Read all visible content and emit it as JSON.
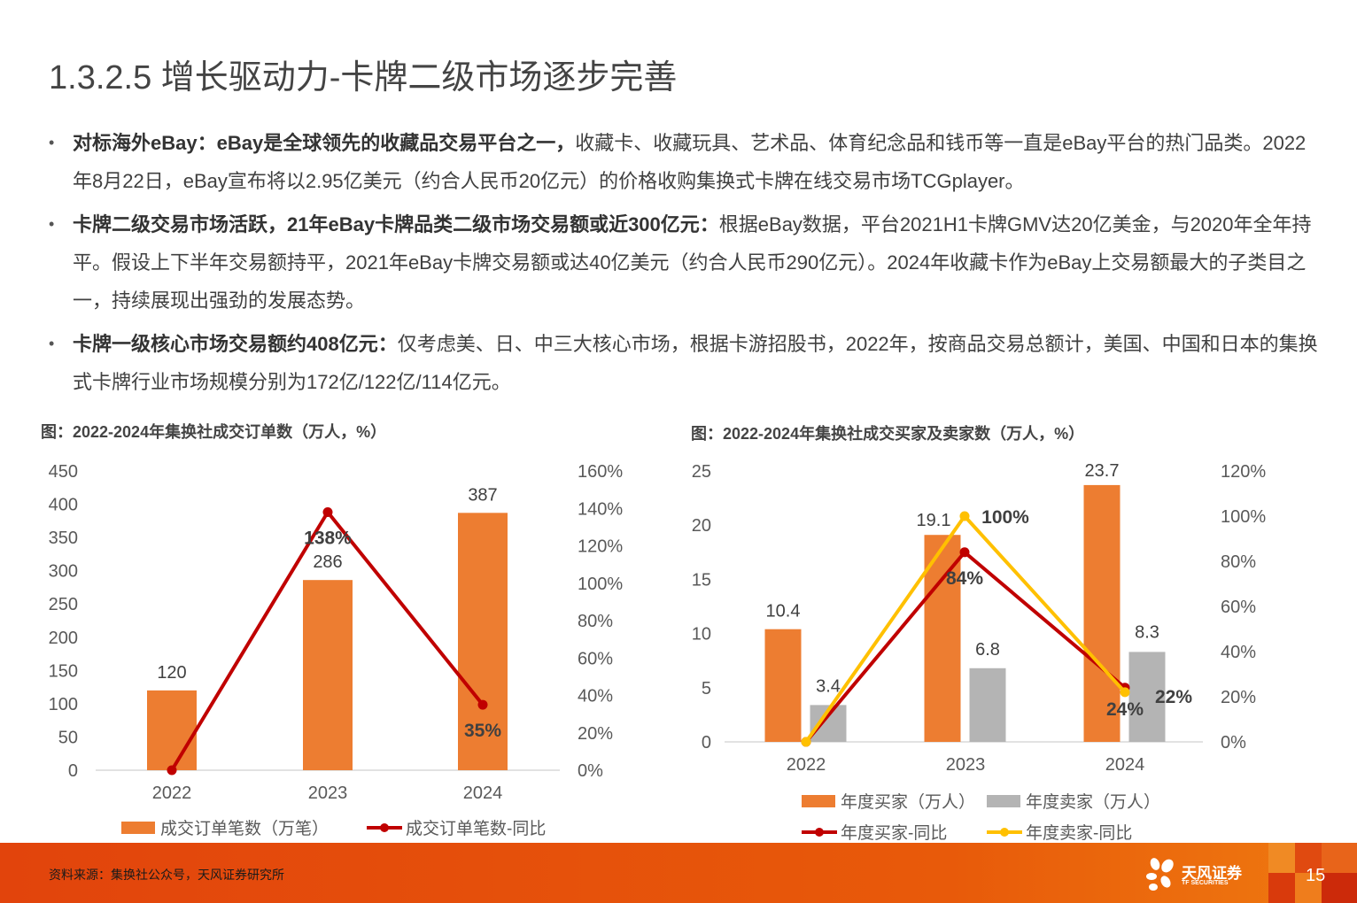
{
  "header": {
    "title": "1.3.2.5 增长驱动力-卡牌二级市场逐步完善"
  },
  "bullets": [
    {
      "bold": "对标海外eBay：eBay是全球领先的收藏品交易平台之一，",
      "text": "收藏卡、收藏玩具、艺术品、体育纪念品和钱币等一直是eBay平台的热门品类。2022年8月22日，eBay宣布将以2.95亿美元（约合人民币20亿元）的价格收购集换式卡牌在线交易市场TCGplayer。"
    },
    {
      "bold": "卡牌二级交易市场活跃，21年eBay卡牌品类二级市场交易额或近300亿元：",
      "text": "根据eBay数据，平台2021H1卡牌GMV达20亿美金，与2020年全年持平。假设上下半年交易额持平，2021年eBay卡牌交易额或达40亿美元（约合人民币290亿元）。2024年收藏卡作为eBay上交易额最大的子类目之一，持续展现出强劲的发展态势。"
    },
    {
      "bold": "卡牌一级核心市场交易额约408亿元：",
      "text": "仅考虑美、日、中三大核心市场，根据卡游招股书，2022年，按商品交易总额计，美国、中国和日本的集换式卡牌行业市场规模分别为172亿/122亿/114亿元。"
    }
  ],
  "figures": {
    "left_title": "图：2022-2024年集换社成交订单数（万人，%）",
    "right_title": "图：2022-2024年集换社成交买家及卖家数（万人，%）"
  },
  "chart_data": [
    {
      "type": "bar",
      "title": "图：2022-2024年集换社成交订单数（万人，%）",
      "categories": [
        "2022",
        "2023",
        "2024"
      ],
      "series": [
        {
          "name": "成交订单笔数（万笔）",
          "type": "bar",
          "axis": "left",
          "color": "#ED7D31",
          "values": [
            120,
            286,
            387
          ],
          "labels": [
            "120",
            "286",
            "387"
          ]
        },
        {
          "name": "成交订单笔数-同比",
          "type": "line",
          "axis": "right",
          "color": "#C00000",
          "values": [
            0,
            138,
            35
          ],
          "labels": [
            "",
            "138%",
            "35%"
          ]
        }
      ],
      "y_left": {
        "min": 0,
        "max": 450,
        "ticks": [
          "0",
          "50",
          "100",
          "150",
          "200",
          "250",
          "300",
          "350",
          "400",
          "450"
        ]
      },
      "y_right": {
        "min": 0,
        "max": 160,
        "ticks": [
          "0%",
          "20%",
          "40%",
          "60%",
          "80%",
          "100%",
          "120%",
          "140%",
          "160%"
        ]
      },
      "legend_position": "bottom",
      "grid": false
    },
    {
      "type": "bar",
      "title": "图：2022-2024年集换社成交买家及卖家数（万人，%）",
      "categories": [
        "2022",
        "2023",
        "2024"
      ],
      "series": [
        {
          "name": "年度买家（万人）",
          "type": "bar",
          "axis": "left",
          "color": "#ED7D31",
          "values": [
            10.4,
            19.1,
            23.7
          ],
          "labels": [
            "10.4",
            "19.1",
            "23.7"
          ]
        },
        {
          "name": "年度卖家（万人）",
          "type": "bar",
          "axis": "left",
          "color": "#B4B4B4",
          "values": [
            3.4,
            6.8,
            8.3
          ],
          "labels": [
            "3.4",
            "6.8",
            "8.3"
          ]
        },
        {
          "name": "年度买家-同比",
          "type": "line",
          "axis": "right",
          "color": "#C00000",
          "values": [
            0,
            84,
            24
          ],
          "labels": [
            "",
            "84%",
            "24%"
          ]
        },
        {
          "name": "年度卖家-同比",
          "type": "line",
          "axis": "right",
          "color": "#FFC000",
          "values": [
            0,
            100,
            22
          ],
          "labels": [
            "",
            "100%",
            "22%"
          ]
        }
      ],
      "y_left": {
        "min": 0,
        "max": 25,
        "ticks": [
          "0",
          "5",
          "10",
          "15",
          "20",
          "25"
        ]
      },
      "y_right": {
        "min": 0,
        "max": 120,
        "ticks": [
          "0%",
          "20%",
          "40%",
          "60%",
          "80%",
          "100%",
          "120%"
        ]
      },
      "legend_position": "bottom",
      "grid": false
    }
  ],
  "footer": {
    "source": "资料来源：集换社公众号，天风证券研究所",
    "logo_cn": "天风证券",
    "logo_en": "TF SECURITIES",
    "page_number": "15"
  }
}
